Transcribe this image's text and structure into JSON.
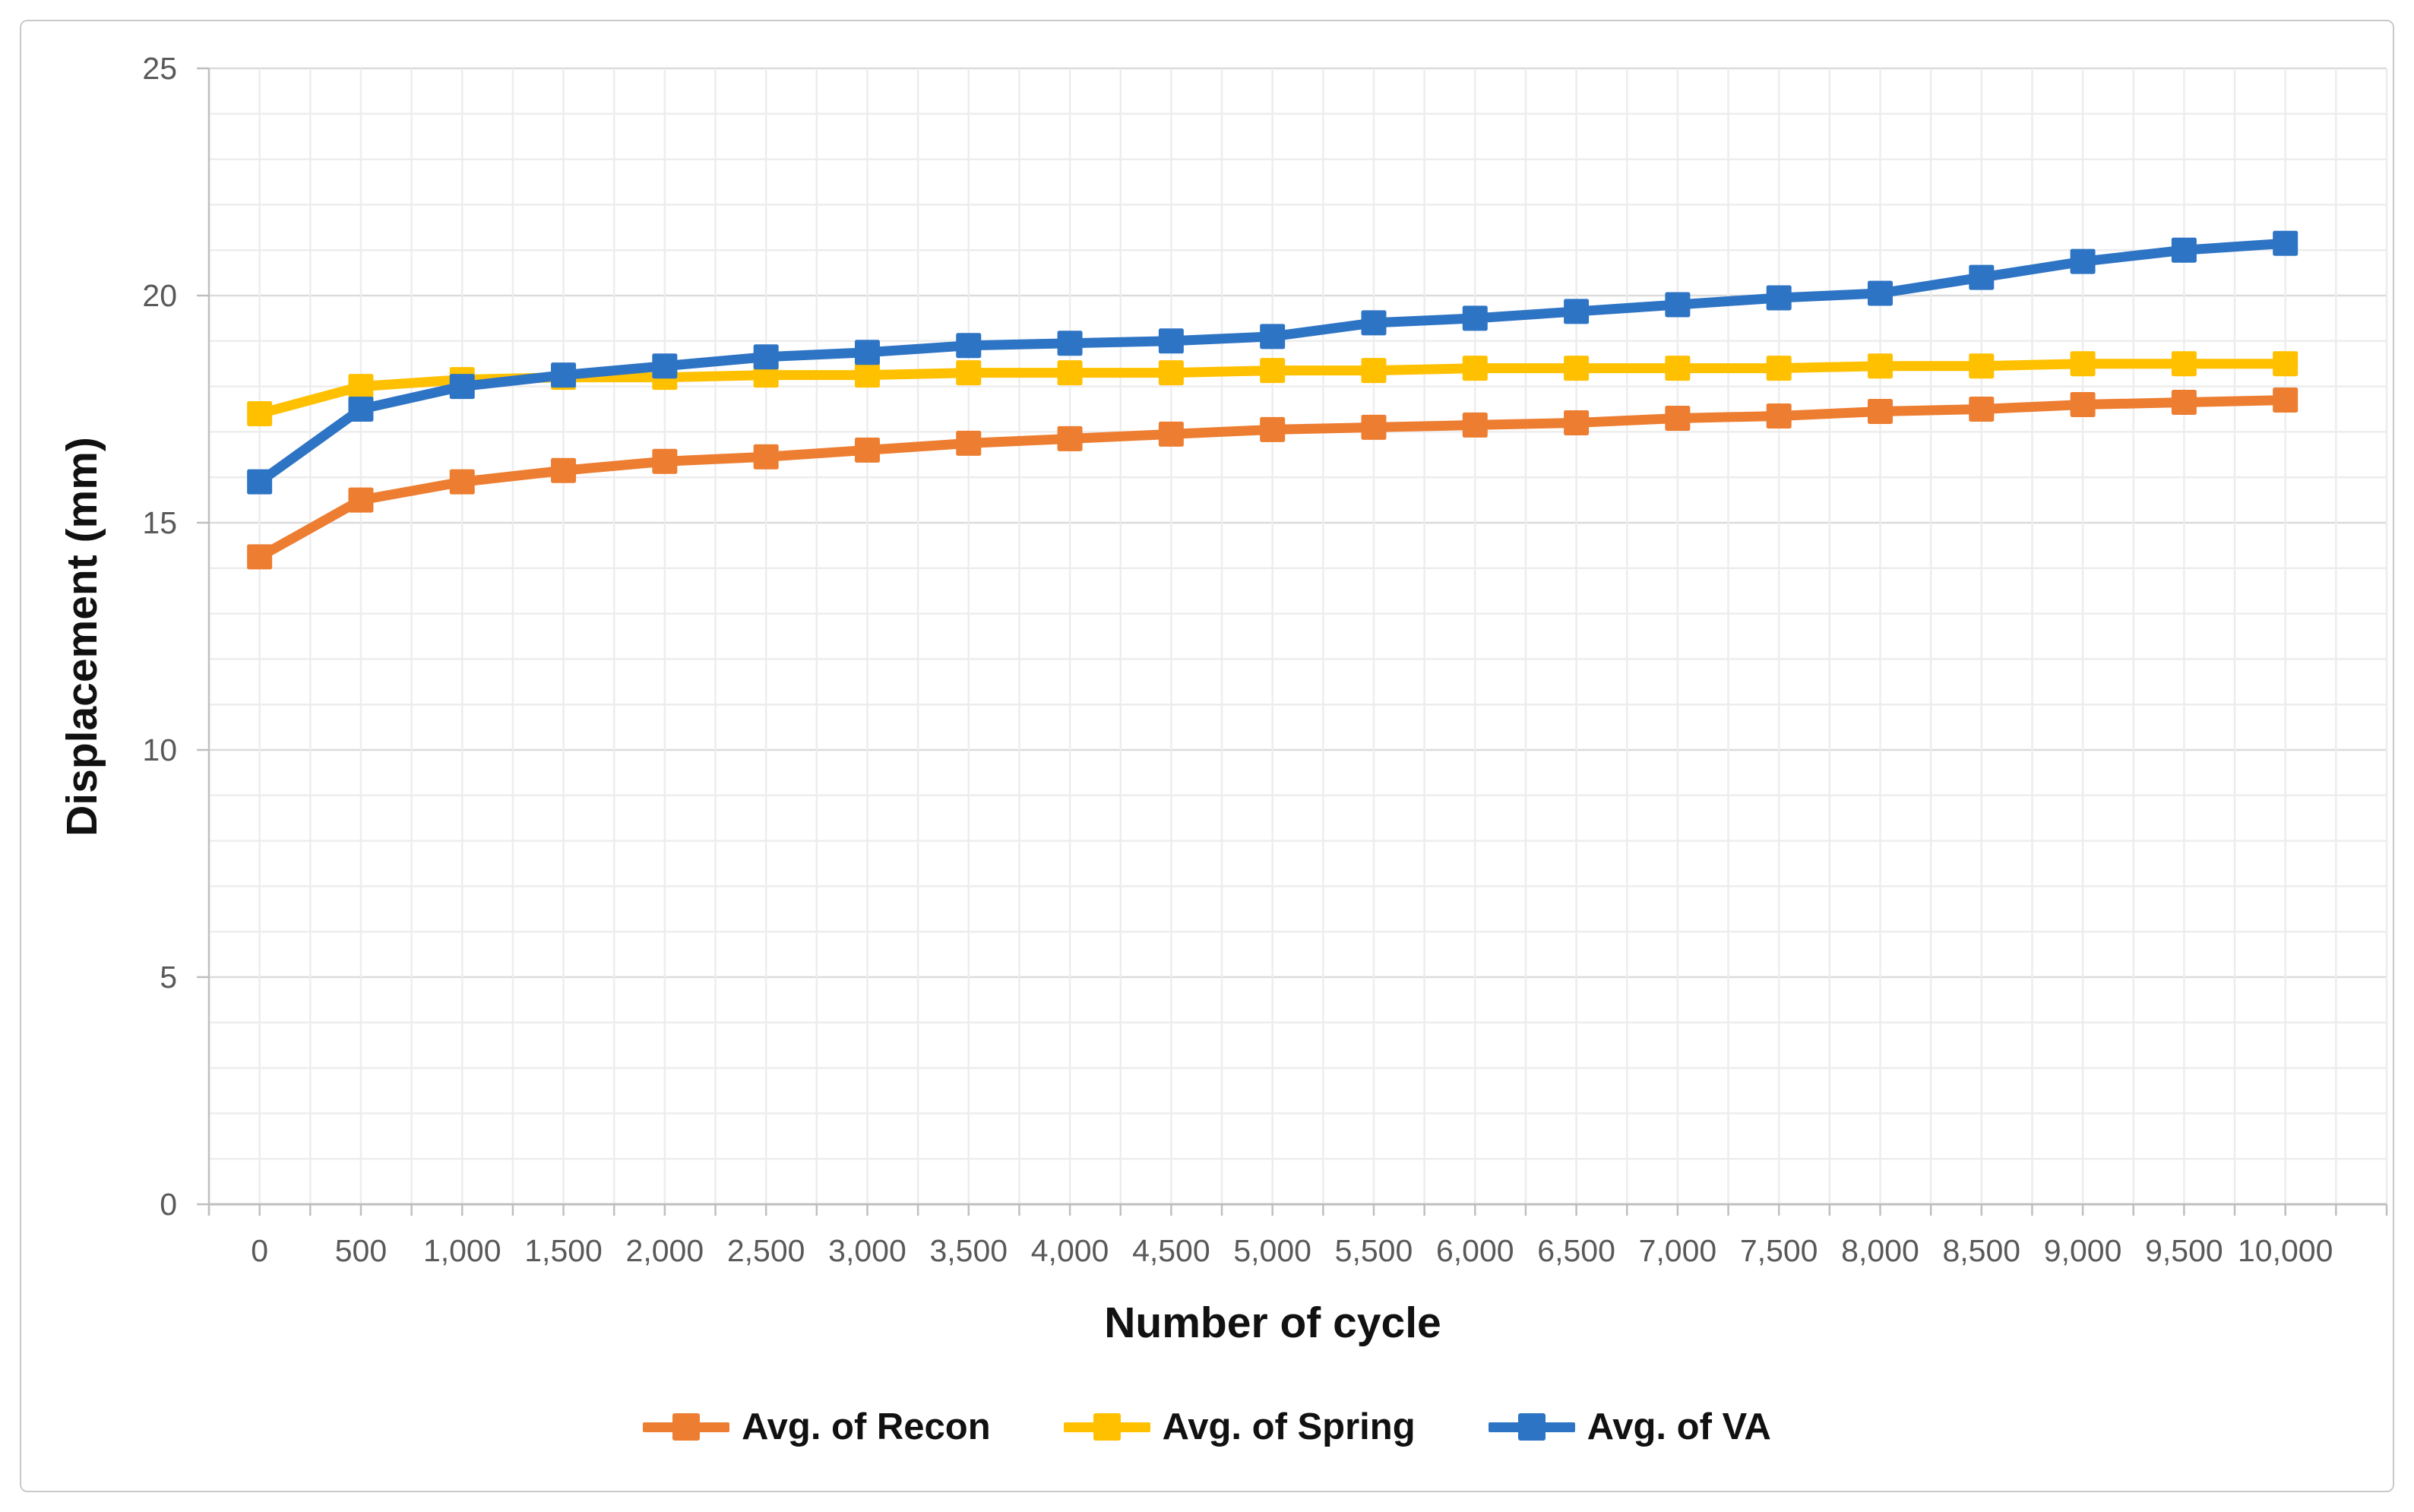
{
  "chart_data": {
    "type": "line",
    "title": "",
    "xlabel": "Number of cycle",
    "ylabel": "Displacement (mm)",
    "x": [
      0,
      500,
      1000,
      1500,
      2000,
      2500,
      3000,
      3500,
      4000,
      4500,
      5000,
      5500,
      6000,
      6500,
      7000,
      7500,
      8000,
      8500,
      9000,
      9500,
      10000
    ],
    "x_tick_labels": [
      "0",
      "500",
      "1,000",
      "1,500",
      "2,000",
      "2,500",
      "3,000",
      "3,500",
      "4,000",
      "4,500",
      "5,000",
      "5,500",
      "6,000",
      "6,500",
      "7,000",
      "7,500",
      "8,000",
      "8,500",
      "9,000",
      "9,500",
      "10,000"
    ],
    "y_ticks": [
      0,
      5,
      10,
      15,
      20,
      25
    ],
    "y_tick_labels": [
      "0",
      "5",
      "10",
      "15",
      "20",
      "25"
    ],
    "ylim": [
      0,
      25
    ],
    "y_minor_step": 1,
    "x_minor_step": 250,
    "grid": true,
    "legend_position": "bottom",
    "series": [
      {
        "name": "Avg. of Recon",
        "color": "#ED7D31",
        "marker": "square",
        "values": [
          14.25,
          15.5,
          15.9,
          16.15,
          16.35,
          16.45,
          16.6,
          16.75,
          16.85,
          16.95,
          17.05,
          17.1,
          17.15,
          17.2,
          17.3,
          17.35,
          17.45,
          17.5,
          17.6,
          17.65,
          17.7
        ]
      },
      {
        "name": "Avg. of Spring",
        "color": "#FFC000",
        "marker": "square",
        "values": [
          17.4,
          18.0,
          18.15,
          18.2,
          18.2,
          18.25,
          18.25,
          18.3,
          18.3,
          18.3,
          18.35,
          18.35,
          18.4,
          18.4,
          18.4,
          18.4,
          18.45,
          18.45,
          18.5,
          18.5,
          18.5
        ]
      },
      {
        "name": "Avg. of VA",
        "color": "#2E74C4",
        "marker": "square",
        "values": [
          15.9,
          17.5,
          18.0,
          18.25,
          18.45,
          18.65,
          18.75,
          18.9,
          18.95,
          19.0,
          19.1,
          19.4,
          19.5,
          19.65,
          19.8,
          19.95,
          20.05,
          20.4,
          20.75,
          21.0,
          21.15
        ]
      }
    ]
  },
  "colors": {
    "axis_line": "#BFBFBF",
    "gridline_minor": "#EDEDED",
    "gridline_major": "#DBDBDB",
    "tick_label": "#595959",
    "axis_title": "#111111",
    "legend_text": "#111111",
    "chart_border": "#C9C9C9",
    "background": "#FFFFFF"
  }
}
